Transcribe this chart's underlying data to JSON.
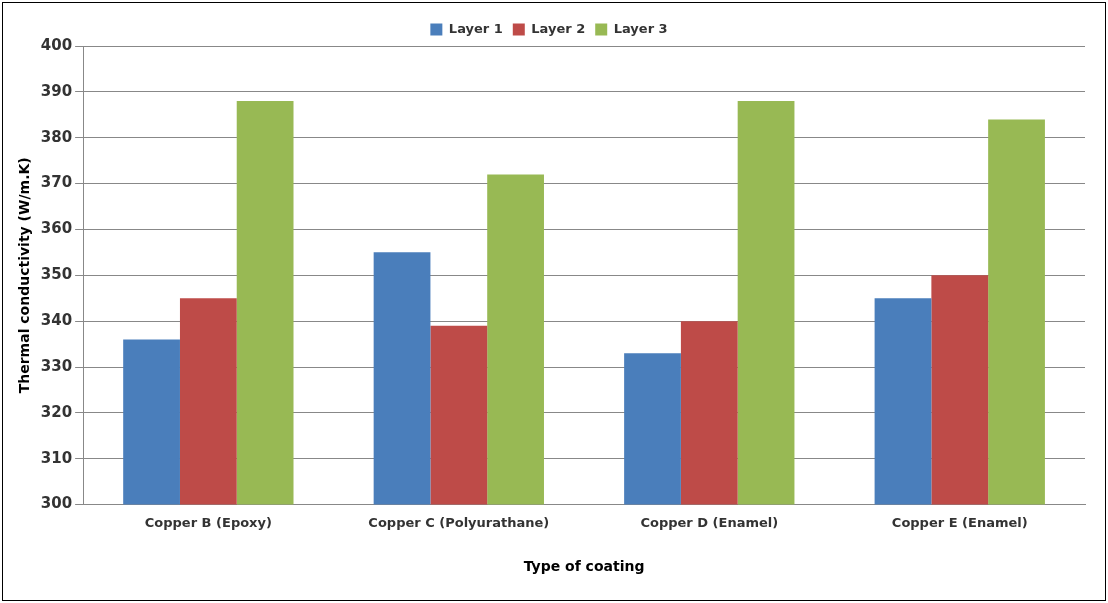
{
  "chart_data": {
    "type": "bar",
    "xlabel": "Type of coating",
    "ylabel": "Thermal conductivity (W/m.K)",
    "categories": [
      "Copper B (Epoxy)",
      "Copper C (Polyurathane)",
      "Copper D (Enamel)",
      "Copper E (Enamel)"
    ],
    "series": [
      {
        "name": "Layer 1",
        "color": "#4a7ebb",
        "values": [
          336,
          355,
          333,
          345
        ]
      },
      {
        "name": "Layer 2",
        "color": "#be4b48",
        "values": [
          345,
          339,
          340,
          350
        ]
      },
      {
        "name": "Layer 3",
        "color": "#98b954",
        "values": [
          388,
          372,
          388,
          384
        ]
      }
    ],
    "ylim": [
      300,
      400
    ],
    "yticks": [
      300,
      310,
      320,
      330,
      340,
      350,
      360,
      370,
      380,
      390,
      400
    ],
    "grid": "y",
    "legend": "top"
  }
}
